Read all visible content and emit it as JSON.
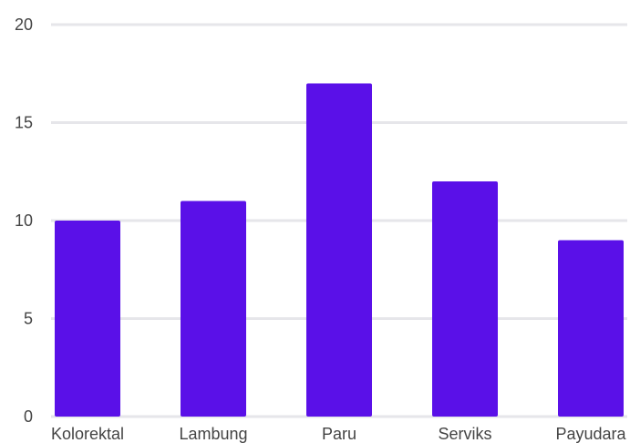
{
  "chart_data": {
    "type": "bar",
    "categories": [
      "Kolorektal",
      "Lambung",
      "Paru",
      "Serviks",
      "Payudara"
    ],
    "values": [
      10,
      11,
      17,
      12,
      9
    ],
    "ylim": [
      0,
      20
    ],
    "yticks": [
      0,
      5,
      10,
      15,
      20
    ],
    "grid": true,
    "bar_color": "#5a10e8",
    "grid_color": "#e6e6ea",
    "text_color": "#444444"
  }
}
